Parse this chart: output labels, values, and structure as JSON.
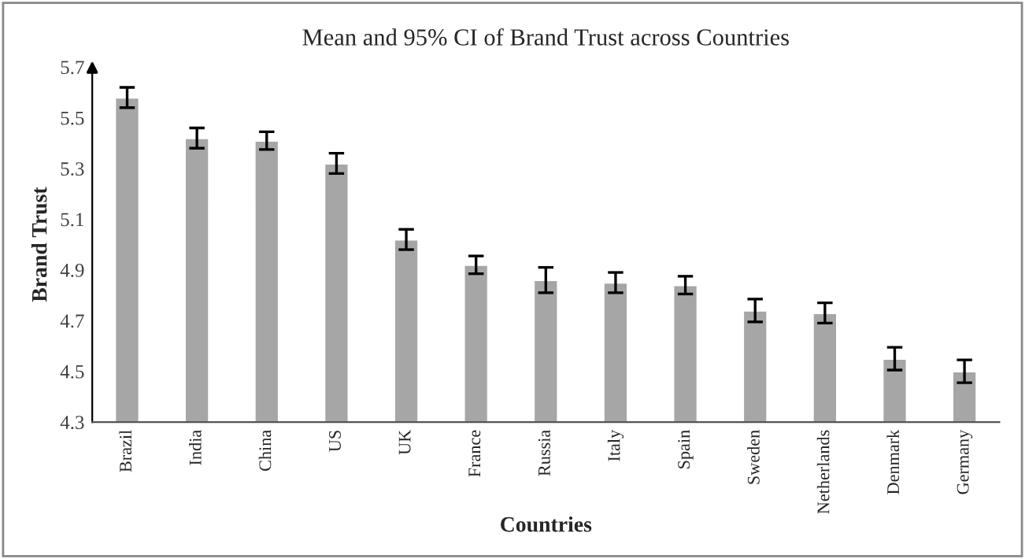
{
  "chart_data": {
    "type": "bar",
    "title": "Mean and 95% CI of Brand Trust across Countries",
    "xlabel": "Countries",
    "ylabel": "Brand Trust",
    "categories": [
      "Brazil",
      "India",
      "China",
      "US",
      "UK",
      "France",
      "Russia",
      "Italy",
      "Spain",
      "Sweden",
      "Netherlands",
      "Denmark",
      "Germany"
    ],
    "values": [
      5.58,
      5.42,
      5.41,
      5.32,
      5.02,
      4.92,
      4.86,
      4.85,
      4.84,
      4.74,
      4.73,
      4.55,
      4.5
    ],
    "errors": [
      0.04,
      0.04,
      0.035,
      0.04,
      0.04,
      0.035,
      0.05,
      0.04,
      0.035,
      0.045,
      0.04,
      0.045,
      0.045
    ],
    "color": "#a6a6a6",
    "ylim": [
      4.3,
      5.7
    ],
    "yticks": [
      4.3,
      4.5,
      4.7,
      4.9,
      5.1,
      5.3,
      5.5,
      5.7
    ],
    "grid": false,
    "legend": false
  }
}
